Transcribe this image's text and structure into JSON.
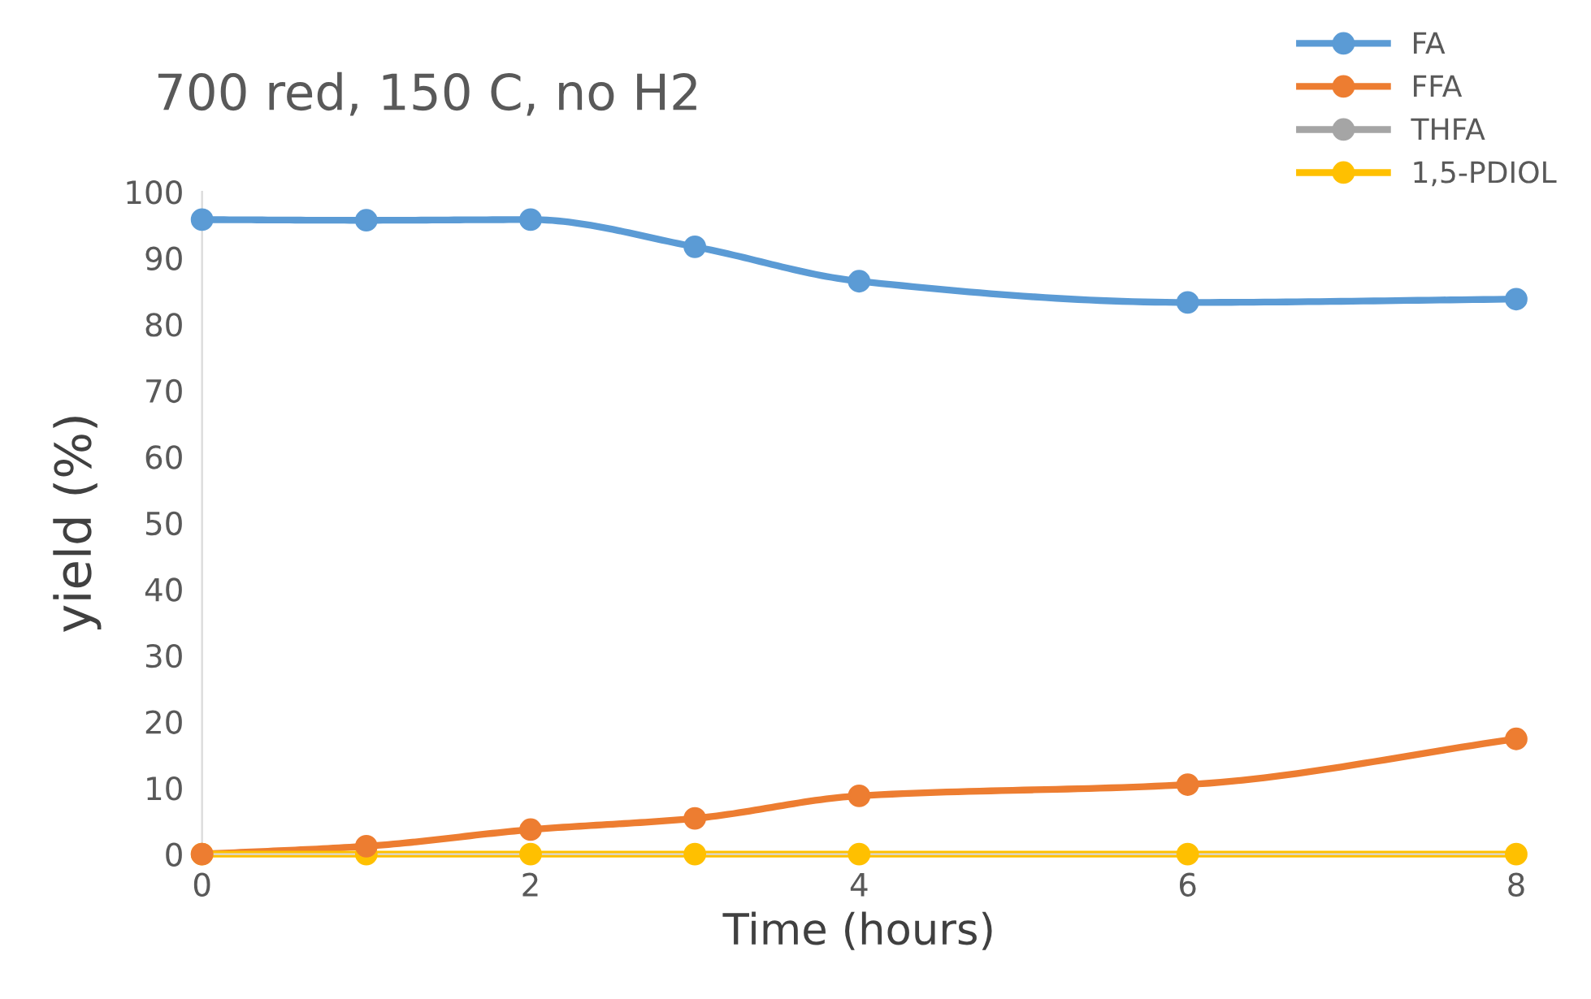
{
  "chart_data": {
    "type": "line",
    "title": "700 red, 150 C, no H2",
    "xlabel": "Time (hours)",
    "ylabel": "yield (%)",
    "x": [
      0,
      1,
      2,
      3,
      4,
      6,
      8
    ],
    "series": [
      {
        "name": "FA",
        "color": "#5b9bd5",
        "values": [
          95.8,
          95.7,
          95.8,
          91.7,
          86.5,
          83.3,
          83.8
        ]
      },
      {
        "name": "FFA",
        "color": "#ed7d31",
        "values": [
          0,
          1.2,
          3.7,
          5.4,
          8.8,
          10.5,
          17.4
        ]
      },
      {
        "name": "THFA",
        "color": "#a5a5a5",
        "values": [
          null,
          null,
          null,
          null,
          null,
          null,
          null
        ]
      },
      {
        "name": "1,5-PDIOL",
        "color": "#ffc000",
        "values": [
          0,
          0,
          0,
          0,
          0,
          0,
          0
        ]
      }
    ],
    "xlim": [
      0,
      8
    ],
    "xticks": [
      0,
      2,
      4,
      6,
      8
    ],
    "ylim": [
      0,
      100
    ],
    "yticks": [
      0,
      10,
      20,
      30,
      40,
      50,
      60,
      70,
      80,
      90,
      100
    ],
    "grid": false,
    "legend": "top right",
    "marker": "circle",
    "line_style": "solid"
  }
}
